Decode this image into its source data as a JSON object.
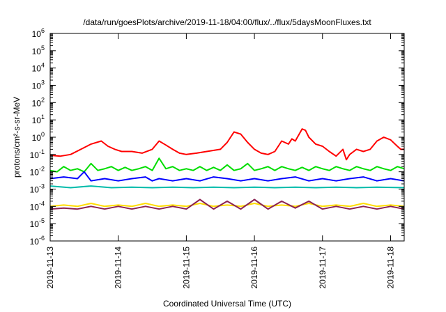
{
  "chart_data": {
    "type": "line",
    "title": "/data/run/goesPlots/archive/2019-11-18/04:00/flux/../flux/5daysMoonFluxes.txt",
    "xlabel": "Coordinated Universal Time (UTC)",
    "ylabel": "protons/cm²-s-sr-MeV",
    "y_scale": "log",
    "ylim": [
      1e-06,
      1000000.0
    ],
    "y_ticks": [
      {
        "base": "10",
        "exp": "-6",
        "value": 1e-06
      },
      {
        "base": "10",
        "exp": "-5",
        "value": 1e-05
      },
      {
        "base": "10",
        "exp": "-4",
        "value": 0.0001
      },
      {
        "base": "10",
        "exp": "-3",
        "value": 0.001
      },
      {
        "base": "10",
        "exp": "-2",
        "value": 0.01
      },
      {
        "base": "10",
        "exp": "-1",
        "value": 0.1
      },
      {
        "base": "10",
        "exp": "0",
        "value": 1
      },
      {
        "base": "10",
        "exp": "1",
        "value": 10
      },
      {
        "base": "10",
        "exp": "2",
        "value": 100
      },
      {
        "base": "10",
        "exp": "3",
        "value": 1000
      },
      {
        "base": "10",
        "exp": "4",
        "value": 10000
      },
      {
        "base": "10",
        "exp": "5",
        "value": 100000
      },
      {
        "base": "10",
        "exp": "6",
        "value": 1000000
      }
    ],
    "xlim": [
      0,
      5.2
    ],
    "x_ticks": [
      {
        "label": "2019-11-13",
        "value": 0
      },
      {
        "label": "2019-11-14",
        "value": 1
      },
      {
        "label": "2019-11-15",
        "value": 2
      },
      {
        "label": "2019-11-16",
        "value": 3
      },
      {
        "label": "2019-11-17",
        "value": 4
      },
      {
        "label": "2019-11-18",
        "value": 5
      }
    ],
    "grid": false,
    "legend": "none",
    "series": [
      {
        "color": "#ff0000",
        "points": [
          [
            0,
            0.09
          ],
          [
            0.15,
            0.08
          ],
          [
            0.3,
            0.1
          ],
          [
            0.45,
            0.2
          ],
          [
            0.6,
            0.4
          ],
          [
            0.75,
            0.6
          ],
          [
            0.85,
            0.3
          ],
          [
            0.95,
            0.2
          ],
          [
            1.05,
            0.15
          ],
          [
            1.2,
            0.15
          ],
          [
            1.35,
            0.12
          ],
          [
            1.5,
            0.2
          ],
          [
            1.6,
            0.6
          ],
          [
            1.7,
            0.35
          ],
          [
            1.8,
            0.2
          ],
          [
            1.9,
            0.12
          ],
          [
            2.0,
            0.1
          ],
          [
            2.15,
            0.12
          ],
          [
            2.3,
            0.15
          ],
          [
            2.5,
            0.2
          ],
          [
            2.6,
            0.5
          ],
          [
            2.7,
            2.0
          ],
          [
            2.8,
            1.5
          ],
          [
            2.9,
            0.5
          ],
          [
            3.0,
            0.2
          ],
          [
            3.1,
            0.12
          ],
          [
            3.2,
            0.1
          ],
          [
            3.3,
            0.15
          ],
          [
            3.4,
            0.6
          ],
          [
            3.5,
            0.4
          ],
          [
            3.55,
            0.8
          ],
          [
            3.6,
            0.6
          ],
          [
            3.7,
            3.0
          ],
          [
            3.75,
            2.5
          ],
          [
            3.8,
            1.0
          ],
          [
            3.9,
            0.4
          ],
          [
            4.0,
            0.3
          ],
          [
            4.1,
            0.15
          ],
          [
            4.2,
            0.08
          ],
          [
            4.3,
            0.2
          ],
          [
            4.35,
            0.05
          ],
          [
            4.4,
            0.1
          ],
          [
            4.5,
            0.2
          ],
          [
            4.6,
            0.15
          ],
          [
            4.7,
            0.2
          ],
          [
            4.8,
            0.6
          ],
          [
            4.9,
            1.0
          ],
          [
            5.0,
            0.7
          ],
          [
            5.1,
            0.3
          ],
          [
            5.15,
            0.2
          ],
          [
            5.2,
            0.2
          ]
        ]
      },
      {
        "color": "#00dd00",
        "points": [
          [
            0,
            0.012
          ],
          [
            0.1,
            0.01
          ],
          [
            0.2,
            0.02
          ],
          [
            0.3,
            0.012
          ],
          [
            0.4,
            0.015
          ],
          [
            0.5,
            0.01
          ],
          [
            0.6,
            0.03
          ],
          [
            0.7,
            0.012
          ],
          [
            0.8,
            0.015
          ],
          [
            0.9,
            0.02
          ],
          [
            1.0,
            0.012
          ],
          [
            1.1,
            0.018
          ],
          [
            1.2,
            0.012
          ],
          [
            1.3,
            0.015
          ],
          [
            1.4,
            0.02
          ],
          [
            1.5,
            0.012
          ],
          [
            1.6,
            0.06
          ],
          [
            1.7,
            0.015
          ],
          [
            1.8,
            0.02
          ],
          [
            1.9,
            0.012
          ],
          [
            2.0,
            0.015
          ],
          [
            2.1,
            0.012
          ],
          [
            2.2,
            0.02
          ],
          [
            2.3,
            0.012
          ],
          [
            2.4,
            0.018
          ],
          [
            2.5,
            0.012
          ],
          [
            2.6,
            0.025
          ],
          [
            2.7,
            0.012
          ],
          [
            2.8,
            0.015
          ],
          [
            2.9,
            0.03
          ],
          [
            3.0,
            0.012
          ],
          [
            3.1,
            0.015
          ],
          [
            3.2,
            0.02
          ],
          [
            3.3,
            0.012
          ],
          [
            3.4,
            0.02
          ],
          [
            3.5,
            0.015
          ],
          [
            3.6,
            0.012
          ],
          [
            3.7,
            0.018
          ],
          [
            3.8,
            0.012
          ],
          [
            3.9,
            0.02
          ],
          [
            4.0,
            0.015
          ],
          [
            4.1,
            0.012
          ],
          [
            4.2,
            0.02
          ],
          [
            4.3,
            0.015
          ],
          [
            4.4,
            0.012
          ],
          [
            4.5,
            0.02
          ],
          [
            4.6,
            0.015
          ],
          [
            4.7,
            0.012
          ],
          [
            4.8,
            0.02
          ],
          [
            4.9,
            0.015
          ],
          [
            5.0,
            0.012
          ],
          [
            5.1,
            0.02
          ],
          [
            5.2,
            0.015
          ]
        ]
      },
      {
        "color": "#0000ff",
        "points": [
          [
            0,
            0.004
          ],
          [
            0.2,
            0.005
          ],
          [
            0.4,
            0.004
          ],
          [
            0.5,
            0.01
          ],
          [
            0.6,
            0.003
          ],
          [
            0.8,
            0.004
          ],
          [
            1.0,
            0.003
          ],
          [
            1.2,
            0.004
          ],
          [
            1.4,
            0.005
          ],
          [
            1.5,
            0.003
          ],
          [
            1.6,
            0.004
          ],
          [
            1.8,
            0.003
          ],
          [
            2.0,
            0.004
          ],
          [
            2.2,
            0.003
          ],
          [
            2.4,
            0.005
          ],
          [
            2.6,
            0.004
          ],
          [
            2.8,
            0.003
          ],
          [
            3.0,
            0.004
          ],
          [
            3.2,
            0.003
          ],
          [
            3.4,
            0.004
          ],
          [
            3.6,
            0.005
          ],
          [
            3.8,
            0.003
          ],
          [
            4.0,
            0.004
          ],
          [
            4.2,
            0.003
          ],
          [
            4.4,
            0.004
          ],
          [
            4.6,
            0.005
          ],
          [
            4.8,
            0.003
          ],
          [
            5.0,
            0.004
          ],
          [
            5.2,
            0.003
          ]
        ]
      },
      {
        "color": "#00bbaa",
        "points": [
          [
            0,
            0.0015
          ],
          [
            0.3,
            0.0012
          ],
          [
            0.6,
            0.0015
          ],
          [
            0.9,
            0.0012
          ],
          [
            1.2,
            0.0013
          ],
          [
            1.5,
            0.0012
          ],
          [
            1.8,
            0.0013
          ],
          [
            2.1,
            0.0012
          ],
          [
            2.4,
            0.0013
          ],
          [
            2.7,
            0.0012
          ],
          [
            3.0,
            0.0013
          ],
          [
            3.3,
            0.0012
          ],
          [
            3.6,
            0.0013
          ],
          [
            3.9,
            0.0012
          ],
          [
            4.2,
            0.0013
          ],
          [
            4.5,
            0.0012
          ],
          [
            4.8,
            0.0013
          ],
          [
            5.2,
            0.0012
          ]
        ]
      },
      {
        "color": "#ffdd00",
        "points": [
          [
            0,
            0.0001
          ],
          [
            0.2,
            0.00012
          ],
          [
            0.4,
            0.0001
          ],
          [
            0.6,
            0.00015
          ],
          [
            0.8,
            0.0001
          ],
          [
            1.0,
            0.00012
          ],
          [
            1.2,
            0.0001
          ],
          [
            1.4,
            0.00015
          ],
          [
            1.6,
            0.0001
          ],
          [
            1.8,
            0.00012
          ],
          [
            2.0,
            0.0001
          ],
          [
            2.2,
            0.00015
          ],
          [
            2.4,
            0.0001
          ],
          [
            2.6,
            0.00012
          ],
          [
            2.8,
            0.0001
          ],
          [
            3.0,
            0.00015
          ],
          [
            3.2,
            0.0001
          ],
          [
            3.4,
            0.00012
          ],
          [
            3.6,
            0.0001
          ],
          [
            3.8,
            0.00015
          ],
          [
            4.0,
            0.0001
          ],
          [
            4.2,
            0.00012
          ],
          [
            4.4,
            0.0001
          ],
          [
            4.6,
            0.00015
          ],
          [
            4.8,
            0.0001
          ],
          [
            5.0,
            0.00012
          ],
          [
            5.2,
            0.0001
          ]
        ]
      },
      {
        "color": "#8b2252",
        "points": [
          [
            0,
            7e-05
          ],
          [
            0.2,
            8e-05
          ],
          [
            0.4,
            7e-05
          ],
          [
            0.6,
            0.0001
          ],
          [
            0.8,
            7e-05
          ],
          [
            1.0,
            0.0001
          ],
          [
            1.2,
            7e-05
          ],
          [
            1.4,
            0.0001
          ],
          [
            1.6,
            7e-05
          ],
          [
            1.8,
            0.0001
          ],
          [
            2.0,
            7e-05
          ],
          [
            2.2,
            0.00025
          ],
          [
            2.4,
            7e-05
          ],
          [
            2.6,
            0.0002
          ],
          [
            2.8,
            7e-05
          ],
          [
            3.0,
            0.00025
          ],
          [
            3.2,
            7e-05
          ],
          [
            3.4,
            0.0002
          ],
          [
            3.6,
            8e-05
          ],
          [
            3.8,
            0.0002
          ],
          [
            4.0,
            7e-05
          ],
          [
            4.2,
            0.0001
          ],
          [
            4.4,
            7e-05
          ],
          [
            4.6,
            0.0001
          ],
          [
            4.8,
            7e-05
          ],
          [
            5.0,
            0.0001
          ],
          [
            5.2,
            7e-05
          ]
        ]
      }
    ]
  }
}
